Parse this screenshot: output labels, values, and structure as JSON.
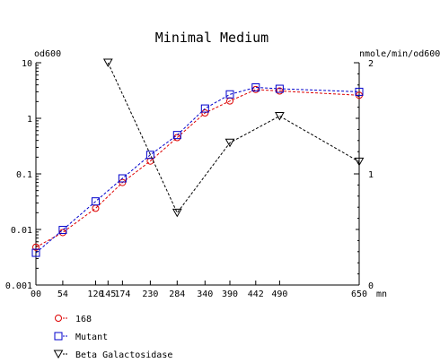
{
  "chart_data": {
    "type": "line",
    "title": "Minimal Medium",
    "ylabel_left": "od600",
    "ylabel_right": "nmole/min/od600",
    "xlabel": "mn",
    "x_ticks": [
      0,
      54,
      120,
      145,
      174,
      230,
      284,
      340,
      390,
      442,
      490,
      650
    ],
    "x_tick_labels": [
      "00",
      "54",
      "120",
      "145",
      "174",
      "230",
      "284",
      "340",
      "390",
      "442",
      "490",
      "650"
    ],
    "xlim": [
      0,
      650
    ],
    "y_left": {
      "scale": "log",
      "lim": [
        0.001,
        10
      ],
      "ticks": [
        0.001,
        0.01,
        0.1,
        1,
        10
      ],
      "tick_labels": [
        "0.001",
        "0.01",
        "0.1",
        "1",
        "10"
      ]
    },
    "y_right": {
      "scale": "linear",
      "lim": [
        0,
        2
      ],
      "ticks": [
        0,
        1,
        2
      ],
      "tick_labels": [
        "0",
        "1",
        "2"
      ]
    },
    "grid": false,
    "legend_position": "bottom-left",
    "series": [
      {
        "name": "168",
        "axis": "left",
        "marker": "circle",
        "color": "#dd0000",
        "x": [
          0,
          54,
          120,
          174,
          230,
          284,
          340,
          390,
          442,
          490,
          650
        ],
        "y": [
          0.0048,
          0.0088,
          0.024,
          0.07,
          0.17,
          0.45,
          1.25,
          2.05,
          3.3,
          3.1,
          2.6
        ]
      },
      {
        "name": "Mutant",
        "axis": "left",
        "marker": "square",
        "color": "#0000cc",
        "x": [
          0,
          54,
          120,
          174,
          230,
          284,
          340,
          390,
          442,
          490,
          650
        ],
        "y": [
          0.0038,
          0.0098,
          0.032,
          0.083,
          0.22,
          0.5,
          1.5,
          2.7,
          3.6,
          3.4,
          3.0
        ]
      },
      {
        "name": "Beta Galactosidase",
        "axis": "right",
        "marker": "triangle-down",
        "color": "#000000",
        "x": [
          145,
          284,
          390,
          490,
          650
        ],
        "y": [
          2.0,
          0.65,
          1.28,
          1.52,
          1.11
        ]
      }
    ]
  }
}
